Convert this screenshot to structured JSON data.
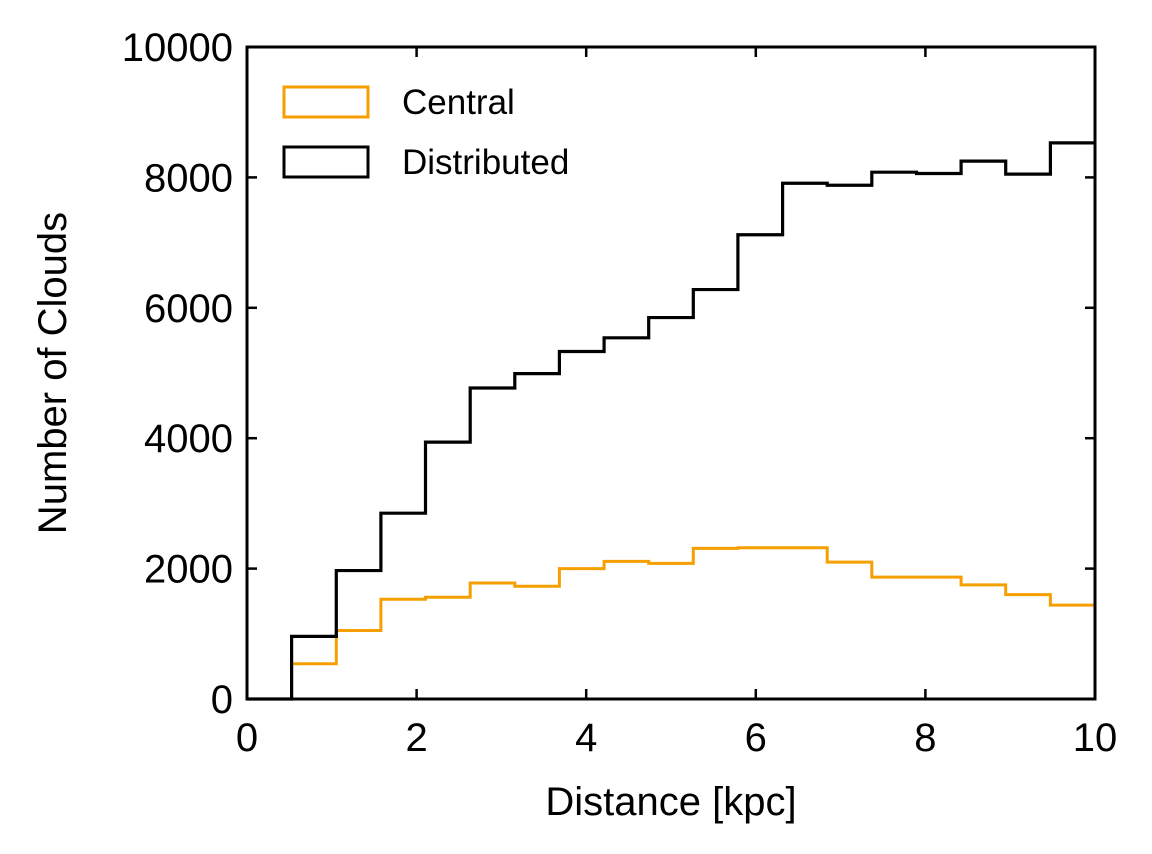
{
  "chart_data": {
    "type": "histogram",
    "xlabel": "Distance [kpc]",
    "ylabel": "Number of Clouds",
    "xlim": [
      0,
      10
    ],
    "ylim": [
      0,
      10000
    ],
    "xticks": [
      0,
      2,
      4,
      6,
      8,
      10
    ],
    "xtick_labels": [
      "0",
      "2",
      "4",
      "6",
      "8",
      "10"
    ],
    "yticks": [
      0,
      2000,
      4000,
      6000,
      8000,
      10000
    ],
    "ytick_labels": [
      "0",
      "2000",
      "4000",
      "6000",
      "8000",
      "10000"
    ],
    "legend_position": "top-left",
    "bin_edges": [
      0,
      0.526,
      1.053,
      1.579,
      2.105,
      2.632,
      3.158,
      3.684,
      4.211,
      4.737,
      5.263,
      5.789,
      6.316,
      6.842,
      7.368,
      7.895,
      8.421,
      8.947,
      9.474,
      10
    ],
    "series": [
      {
        "name": "Central",
        "color": "#f5a000",
        "values": [
          0,
          540,
          1050,
          1530,
          1560,
          1780,
          1730,
          2000,
          2110,
          2080,
          2310,
          2320,
          2320,
          2100,
          1870,
          1870,
          1750,
          1600,
          1440
        ]
      },
      {
        "name": "Distributed",
        "color": "#000000",
        "values": [
          0,
          960,
          1970,
          2850,
          3940,
          4770,
          4990,
          5330,
          5540,
          5850,
          6280,
          7120,
          7910,
          7880,
          8080,
          8060,
          8250,
          8050,
          8530
        ]
      }
    ]
  }
}
